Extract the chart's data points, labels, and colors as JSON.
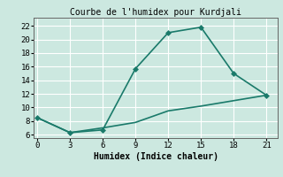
{
  "title": "Courbe de l'humidex pour Kurdjali",
  "xlabel": "Humidex (Indice chaleur)",
  "bg_color": "#cce8e0",
  "line_color": "#1a7a6a",
  "grid_color": "#ffffff",
  "x_ticks": [
    0,
    3,
    6,
    9,
    12,
    15,
    18,
    21
  ],
  "y_ticks": [
    6,
    8,
    10,
    12,
    14,
    16,
    18,
    20,
    22
  ],
  "xlim": [
    -0.3,
    22.0
  ],
  "ylim": [
    5.5,
    23.2
  ],
  "upper_x": [
    0,
    3,
    6,
    9,
    12,
    15,
    18,
    21
  ],
  "upper_y": [
    8.5,
    6.3,
    6.7,
    15.7,
    21.0,
    21.8,
    15.0,
    11.8
  ],
  "lower_x": [
    0,
    3,
    6,
    9,
    12,
    15,
    18,
    21
  ],
  "lower_y": [
    8.5,
    6.3,
    7.0,
    7.8,
    9.5,
    10.2,
    11.0,
    11.8
  ],
  "marker": "D",
  "marker_size": 3,
  "linewidth": 1.2,
  "tick_fontsize": 6.5,
  "xlabel_fontsize": 7,
  "title_fontsize": 7
}
